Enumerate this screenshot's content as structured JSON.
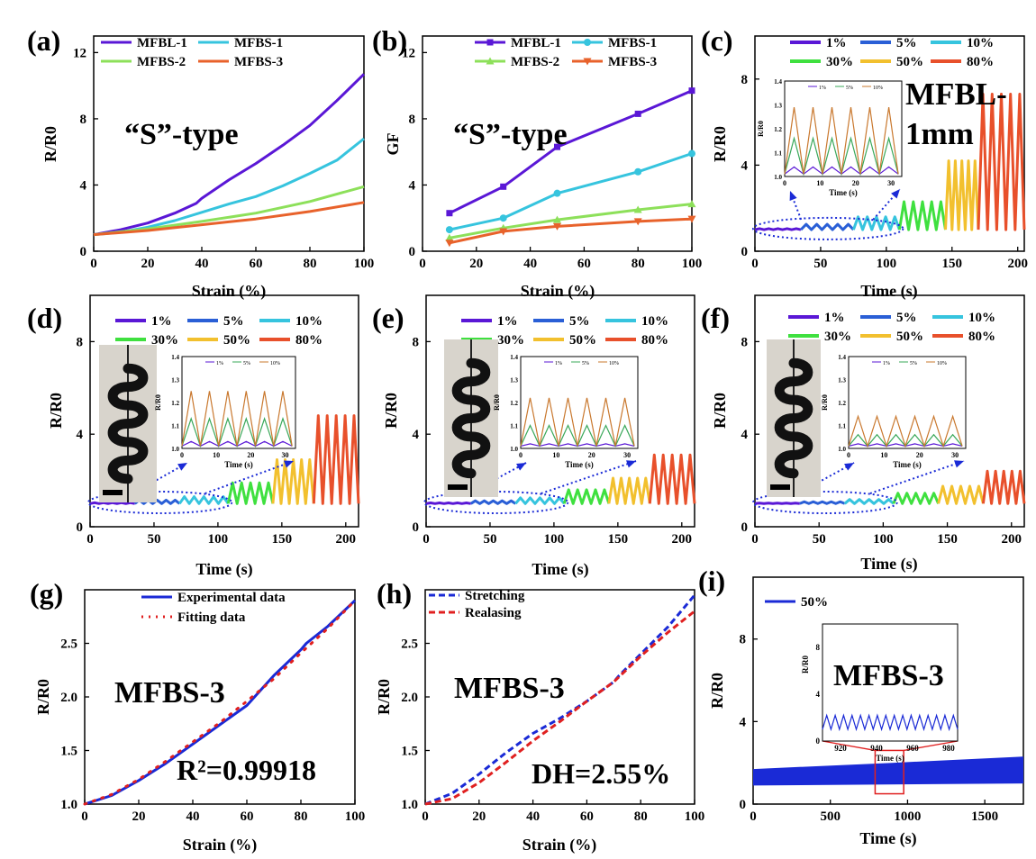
{
  "panels": [
    {
      "id": "a",
      "panel_label": "(a)",
      "type": "line",
      "xlabel": "Strain (%)",
      "ylabel": "R/R0",
      "xlim": [
        0,
        100
      ],
      "ylim": [
        0,
        13
      ],
      "xticks": [
        0,
        20,
        40,
        60,
        80,
        100
      ],
      "yticks": [
        0,
        4,
        8,
        12
      ],
      "legend_cols": 2,
      "annotations": [
        "“S”-type"
      ],
      "series": [
        {
          "name": "MFBL-1",
          "color": "#5a17d6",
          "marker": "none",
          "x": [
            0,
            10,
            20,
            30,
            38,
            40,
            50,
            60,
            70,
            80,
            90,
            100
          ],
          "y": [
            1,
            1.3,
            1.7,
            2.3,
            2.9,
            3.2,
            4.3,
            5.3,
            6.4,
            7.6,
            9.1,
            10.7
          ]
        },
        {
          "name": "MFBS-1",
          "color": "#36c4de",
          "marker": "none",
          "x": [
            0,
            10,
            20,
            30,
            40,
            50,
            60,
            70,
            80,
            90,
            100
          ],
          "y": [
            1,
            1.15,
            1.45,
            1.85,
            2.35,
            2.85,
            3.3,
            3.95,
            4.7,
            5.5,
            6.8
          ]
        },
        {
          "name": "MFBS-2",
          "color": "#8de05a",
          "marker": "none",
          "x": [
            0,
            20,
            40,
            60,
            80,
            100
          ],
          "y": [
            1,
            1.35,
            1.8,
            2.3,
            3.0,
            3.9
          ]
        },
        {
          "name": "MFBS-3",
          "color": "#e8622b",
          "marker": "none",
          "x": [
            0,
            20,
            40,
            60,
            80,
            100
          ],
          "y": [
            1,
            1.25,
            1.6,
            1.95,
            2.4,
            2.95
          ]
        }
      ]
    },
    {
      "id": "b",
      "panel_label": "(b)",
      "type": "line",
      "xlabel": "Strain (%)",
      "ylabel": "GF",
      "xlim": [
        0,
        100
      ],
      "ylim": [
        0,
        13
      ],
      "xticks": [
        0,
        20,
        40,
        60,
        80,
        100
      ],
      "yticks": [
        0,
        4,
        8,
        12
      ],
      "legend_cols": 2,
      "annotations": [
        "“S”-type"
      ],
      "series": [
        {
          "name": "MFBL-1",
          "color": "#5a17d6",
          "marker": "square",
          "x": [
            10,
            30,
            50,
            80,
            100
          ],
          "y": [
            2.3,
            3.9,
            6.3,
            8.3,
            9.7
          ]
        },
        {
          "name": "MFBS-1",
          "color": "#36c4de",
          "marker": "circle",
          "x": [
            10,
            30,
            50,
            80,
            100
          ],
          "y": [
            1.3,
            2.0,
            3.5,
            4.8,
            5.9
          ]
        },
        {
          "name": "MFBS-2",
          "color": "#8de05a",
          "marker": "triangle-up",
          "x": [
            10,
            30,
            50,
            80,
            100
          ],
          "y": [
            0.8,
            1.4,
            1.9,
            2.5,
            2.85
          ]
        },
        {
          "name": "MFBS-3",
          "color": "#e8622b",
          "marker": "triangle-down",
          "x": [
            10,
            30,
            50,
            80,
            100
          ],
          "y": [
            0.5,
            1.2,
            1.5,
            1.8,
            1.95
          ]
        }
      ]
    },
    {
      "id": "c",
      "panel_label": "(c)",
      "type": "cyclic",
      "xlabel": "Time (s)",
      "ylabel": "R/R0",
      "xlim": [
        0,
        205
      ],
      "ylim": [
        0,
        10
      ],
      "xticks": [
        0,
        50,
        100,
        150,
        200
      ],
      "yticks": [
        0,
        4,
        8
      ],
      "legend_cols": 3,
      "annotations": [
        "MFBL-",
        "1mm"
      ],
      "cycle_groups": [
        {
          "name": "1%",
          "color": "#5a17d6",
          "t": [
            0,
            35
          ],
          "peak": 1.05
        },
        {
          "name": "5%",
          "color": "#2a5fd6",
          "t": [
            35,
            75
          ],
          "peak": 1.25
        },
        {
          "name": "10%",
          "color": "#36c4de",
          "t": [
            75,
            110
          ],
          "peak": 1.6
        },
        {
          "name": "30%",
          "color": "#3fe03f",
          "t": [
            110,
            145
          ],
          "peak": 2.3
        },
        {
          "name": "50%",
          "color": "#f2c02e",
          "t": [
            145,
            170
          ],
          "peak": 4.2
        },
        {
          "name": "80%",
          "color": "#e8502b",
          "t": [
            170,
            205
          ],
          "peak": 7.3
        }
      ],
      "inset": {
        "ylabel": "R/R0",
        "xlabel": "Time (s)",
        "xlim": [
          0,
          33
        ],
        "ylim": [
          1.0,
          1.4
        ],
        "xticks": [
          0,
          10,
          20,
          30
        ],
        "yticks": [
          1.0,
          1.1,
          1.2,
          1.3,
          1.4
        ],
        "legend": [
          "1%",
          "5%",
          "10%"
        ],
        "peaks": [
          1.04,
          1.16,
          1.29
        ]
      }
    },
    {
      "id": "d",
      "panel_label": "(d)",
      "type": "cyclic",
      "xlabel": "Time (s)",
      "ylabel": "R/R0",
      "xlim": [
        0,
        210
      ],
      "ylim": [
        0,
        10
      ],
      "xticks": [
        0,
        50,
        100,
        150,
        200
      ],
      "yticks": [
        0,
        4,
        8
      ],
      "legend_cols": 3,
      "annotations": [],
      "cycle_groups": [
        {
          "name": "1%",
          "color": "#5a17d6",
          "t": [
            0,
            35
          ],
          "peak": 1.04
        },
        {
          "name": "5%",
          "color": "#2a5fd6",
          "t": [
            35,
            70
          ],
          "peak": 1.15
        },
        {
          "name": "10%",
          "color": "#36c4de",
          "t": [
            70,
            108
          ],
          "peak": 1.3
        },
        {
          "name": "30%",
          "color": "#3fe03f",
          "t": [
            108,
            143
          ],
          "peak": 1.9
        },
        {
          "name": "50%",
          "color": "#f2c02e",
          "t": [
            143,
            175
          ],
          "peak": 2.9
        },
        {
          "name": "80%",
          "color": "#e8502b",
          "t": [
            175,
            210
          ],
          "peak": 4.8
        }
      ],
      "inset": {
        "ylabel": "R/R0",
        "xlabel": "Time (s)",
        "xlim": [
          0,
          33
        ],
        "ylim": [
          1.0,
          1.4
        ],
        "xticks": [
          0,
          10,
          20,
          30
        ],
        "yticks": [
          1.0,
          1.1,
          1.2,
          1.3,
          1.4
        ],
        "legend": [
          "1%",
          "5%",
          "10%"
        ],
        "peaks": [
          1.03,
          1.13,
          1.25
        ]
      }
    },
    {
      "id": "e",
      "panel_label": "(e)",
      "type": "cyclic",
      "xlabel": "Time (s)",
      "ylabel": "R/R0",
      "xlim": [
        0,
        210
      ],
      "ylim": [
        0,
        10
      ],
      "xticks": [
        0,
        50,
        100,
        150,
        200
      ],
      "yticks": [
        0,
        4,
        8
      ],
      "legend_cols": 3,
      "annotations": [],
      "cycle_groups": [
        {
          "name": "1%",
          "color": "#5a17d6",
          "t": [
            0,
            35
          ],
          "peak": 1.03
        },
        {
          "name": "5%",
          "color": "#2a5fd6",
          "t": [
            35,
            70
          ],
          "peak": 1.12
        },
        {
          "name": "10%",
          "color": "#36c4de",
          "t": [
            70,
            108
          ],
          "peak": 1.25
        },
        {
          "name": "30%",
          "color": "#3fe03f",
          "t": [
            108,
            143
          ],
          "peak": 1.6
        },
        {
          "name": "50%",
          "color": "#f2c02e",
          "t": [
            143,
            175
          ],
          "peak": 2.1
        },
        {
          "name": "80%",
          "color": "#e8502b",
          "t": [
            175,
            210
          ],
          "peak": 3.1
        }
      ],
      "inset": {
        "ylabel": "R/R0",
        "xlabel": "Time (s)",
        "xlim": [
          0,
          33
        ],
        "ylim": [
          1.0,
          1.4
        ],
        "xticks": [
          0,
          10,
          20,
          30
        ],
        "yticks": [
          1.0,
          1.1,
          1.2,
          1.3,
          1.4
        ],
        "legend": [
          "1%",
          "5%",
          "10%"
        ],
        "peaks": [
          1.02,
          1.1,
          1.22
        ]
      }
    },
    {
      "id": "f",
      "panel_label": "(f)",
      "type": "cyclic",
      "xlabel": "Time (s)",
      "ylabel": "R/R0",
      "xlim": [
        0,
        210
      ],
      "ylim": [
        0,
        10
      ],
      "xticks": [
        0,
        50,
        100,
        150,
        200
      ],
      "yticks": [
        0,
        4,
        8
      ],
      "legend_cols": 3,
      "annotations": [],
      "cycle_groups": [
        {
          "name": "1%",
          "color": "#5a17d6",
          "t": [
            0,
            35
          ],
          "peak": 1.02
        },
        {
          "name": "5%",
          "color": "#2a5fd6",
          "t": [
            35,
            70
          ],
          "peak": 1.08
        },
        {
          "name": "10%",
          "color": "#36c4de",
          "t": [
            70,
            108
          ],
          "peak": 1.18
        },
        {
          "name": "30%",
          "color": "#3fe03f",
          "t": [
            108,
            143
          ],
          "peak": 1.45
        },
        {
          "name": "50%",
          "color": "#f2c02e",
          "t": [
            143,
            178
          ],
          "peak": 1.75
        },
        {
          "name": "80%",
          "color": "#e8502b",
          "t": [
            178,
            210
          ],
          "peak": 2.4
        }
      ],
      "inset": {
        "ylabel": "R/R0",
        "xlabel": "Time (s)",
        "xlim": [
          0,
          33
        ],
        "ylim": [
          1.0,
          1.4
        ],
        "xticks": [
          0,
          10,
          20,
          30
        ],
        "yticks": [
          1.0,
          1.1,
          1.2,
          1.3,
          1.4
        ],
        "legend": [
          "1%",
          "5%",
          "10%"
        ],
        "peaks": [
          1.02,
          1.06,
          1.14
        ]
      }
    },
    {
      "id": "g",
      "panel_label": "(g)",
      "type": "line",
      "xlabel": "Strain (%)",
      "ylabel": "R/R0",
      "xlim": [
        0,
        100
      ],
      "ylim": [
        1.0,
        3.0
      ],
      "xticks": [
        0,
        20,
        40,
        60,
        80,
        100
      ],
      "yticks": [
        1.0,
        1.5,
        2.0,
        2.5
      ],
      "legend_cols": 1,
      "annotations": [
        "MFBS-3",
        "R²=0.99918"
      ],
      "series": [
        {
          "name": "Experimental data",
          "color": "#1a2ad6",
          "marker": "none",
          "dash": "none",
          "x": [
            0,
            10,
            20,
            30,
            40,
            50,
            60,
            70,
            80,
            82,
            90,
            100
          ],
          "y": [
            1.0,
            1.08,
            1.22,
            1.38,
            1.56,
            1.74,
            1.92,
            2.2,
            2.44,
            2.5,
            2.66,
            2.9
          ]
        },
        {
          "name": "Fitting data",
          "color": "#e02020",
          "marker": "none",
          "dash": "dot",
          "x": [
            0,
            10,
            20,
            30,
            40,
            50,
            60,
            70,
            80,
            90,
            100
          ],
          "y": [
            1.0,
            1.09,
            1.23,
            1.4,
            1.58,
            1.76,
            1.96,
            2.17,
            2.41,
            2.64,
            2.9
          ]
        }
      ]
    },
    {
      "id": "h",
      "panel_label": "(h)",
      "type": "line",
      "xlabel": "Strain (%)",
      "ylabel": "R/R0",
      "xlim": [
        0,
        100
      ],
      "ylim": [
        1.0,
        3.0
      ],
      "xticks": [
        0,
        20,
        40,
        60,
        80,
        100
      ],
      "yticks": [
        1.0,
        1.5,
        2.0,
        2.5
      ],
      "legend_cols": 1,
      "annotations": [
        "MFBS-3",
        "DH=2.55%"
      ],
      "series": [
        {
          "name": "Stretching",
          "color": "#1a2ad6",
          "marker": "none",
          "dash": "dash",
          "x": [
            0,
            10,
            20,
            30,
            40,
            50,
            60,
            70,
            72,
            80,
            90,
            100
          ],
          "y": [
            1.0,
            1.1,
            1.28,
            1.48,
            1.66,
            1.8,
            1.96,
            2.14,
            2.2,
            2.4,
            2.65,
            2.95
          ]
        },
        {
          "name": "Realasing",
          "color": "#e02020",
          "marker": "none",
          "dash": "dash",
          "x": [
            0,
            10,
            20,
            30,
            40,
            50,
            60,
            70,
            80,
            90,
            100
          ],
          "y": [
            1.0,
            1.05,
            1.2,
            1.39,
            1.59,
            1.77,
            1.96,
            2.14,
            2.38,
            2.6,
            2.8
          ]
        }
      ]
    },
    {
      "id": "i",
      "panel_label": "(i)",
      "type": "band",
      "xlabel": "Time (s)",
      "ylabel": "R/R0",
      "xlim": [
        0,
        1750
      ],
      "ylim": [
        0,
        11
      ],
      "xticks": [
        0,
        500,
        1000,
        1500
      ],
      "yticks": [
        0,
        4,
        8
      ],
      "legend_cols": 1,
      "annotations": [
        "MFBS-3"
      ],
      "series": [
        {
          "name": "50%",
          "color": "#1a2ad6",
          "low": [
            [
              0,
              0.9
            ],
            [
              1750,
              1.0
            ]
          ],
          "high": [
            [
              0,
              1.7
            ],
            [
              900,
              2.0
            ],
            [
              1750,
              2.3
            ]
          ]
        }
      ],
      "inset": {
        "ylabel": "R/R0",
        "xlabel": "Time (s)",
        "xlim": [
          910,
          985
        ],
        "ylim": [
          0,
          10
        ],
        "xticks": [
          920,
          940,
          960,
          980
        ],
        "yticks": [
          0,
          4,
          8
        ],
        "cycles": 16,
        "low": 1.0,
        "high": 2.2
      }
    }
  ],
  "colors": {
    "axis": "#000000",
    "pointer": "#1a2ad6",
    "highlight": "#e02020"
  }
}
